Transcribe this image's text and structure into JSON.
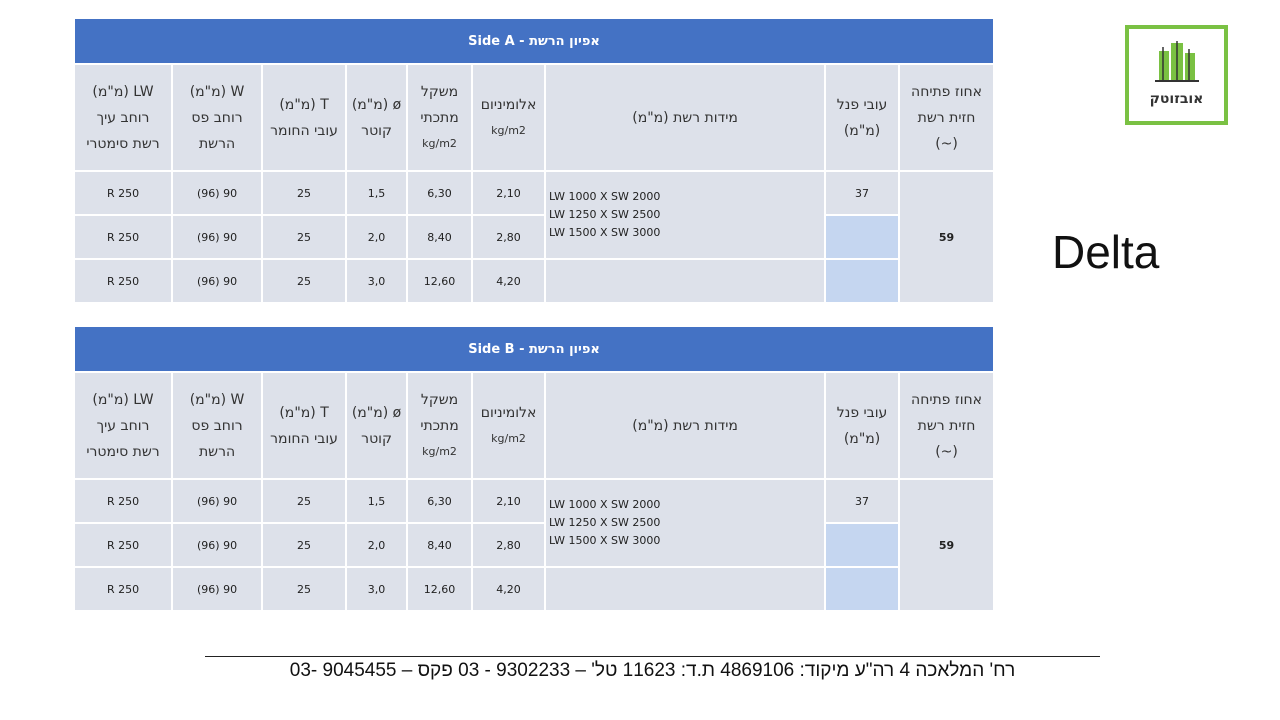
{
  "logo": {
    "text": "אובזוטק"
  },
  "product": "Delta",
  "tables": [
    {
      "title": "אפיון הרשת - Side A",
      "headers": [
        [
          "אחוז פתיחה",
          "חזית רשת",
          "(~)"
        ],
        [
          "עובי פנל",
          "(מ\"מ)"
        ],
        [
          "מידות רשת (מ\"מ)"
        ],
        [
          "אלומיניום",
          "kg/m2"
        ],
        [
          "משקל",
          "מתכתי",
          "kg/m2"
        ],
        [
          "ø (מ\"מ)",
          "קוטר"
        ],
        [
          "T (מ\"מ)",
          "עובי החומר"
        ],
        [
          "W (מ\"מ)",
          "רוחב פס",
          "הרשת"
        ],
        [
          "LW (מ\"מ)",
          "רוחב עיך",
          "רשת סימטרי"
        ]
      ],
      "opening": "59",
      "panel": "37",
      "dimensions": [
        "LW 1000  X SW 2000",
        "LW 1250  X SW 2500",
        "LW 1500  X SW 3000"
      ],
      "rows": [
        {
          "aluminum": "2,10",
          "weight": "6,30",
          "diameter": "1,5",
          "t": "25",
          "w": "90 (96)",
          "lw": "R 250"
        },
        {
          "aluminum": "2,80",
          "weight": "8,40",
          "diameter": "2,0",
          "t": "25",
          "w": "90 (96)",
          "lw": "R 250"
        },
        {
          "aluminum": "4,20",
          "weight": "12,60",
          "diameter": "3,0",
          "t": "25",
          "w": "90 (96)",
          "lw": "R 250"
        }
      ]
    },
    {
      "title": "אפיון הרשת - Side B",
      "headers": [
        [
          "אחוז פתיחה",
          "חזית רשת",
          "(~)"
        ],
        [
          "עובי פנל",
          "(מ\"מ)"
        ],
        [
          "מידות רשת (מ\"מ)"
        ],
        [
          "אלומיניום",
          "kg/m2"
        ],
        [
          "משקל",
          "מתכתי",
          "kg/m2"
        ],
        [
          "ø (מ\"מ)",
          "קוטר"
        ],
        [
          "T (מ\"מ)",
          "עובי החומר"
        ],
        [
          "W (מ\"מ)",
          "רוחב פס",
          "הרשת"
        ],
        [
          "LW (מ\"מ)",
          "רוחב עיך",
          "רשת סימטרי"
        ]
      ],
      "opening": "59",
      "panel": "37",
      "dimensions": [
        "LW 1000  X SW 2000",
        "LW 1250  X SW 2500",
        "LW 1500  X SW 3000"
      ],
      "rows": [
        {
          "aluminum": "2,10",
          "weight": "6,30",
          "diameter": "1,5",
          "t": "25",
          "w": "90 (96)",
          "lw": "R 250"
        },
        {
          "aluminum": "2,80",
          "weight": "8,40",
          "diameter": "2,0",
          "t": "25",
          "w": "90 (96)",
          "lw": "R 250"
        },
        {
          "aluminum": "4,20",
          "weight": "12,60",
          "diameter": "3,0",
          "t": "25",
          "w": "90 (96)",
          "lw": "R 250"
        }
      ]
    }
  ],
  "footer": "רח' המלאכה 4 רה\"ע מיקוד: 4869106 ת.ד: 11623 טל' – 9302233 - 03   פקס – 9045455 -03"
}
